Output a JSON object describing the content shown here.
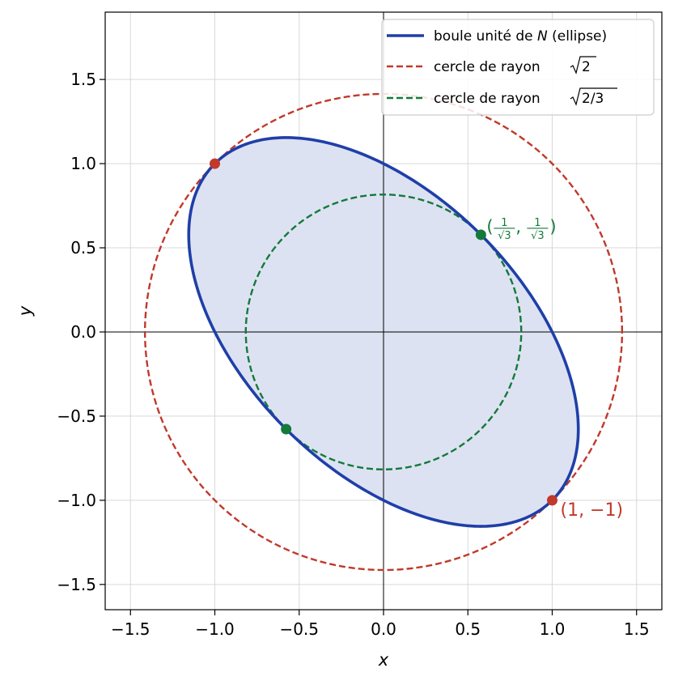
{
  "chart_data": {
    "type": "line",
    "xlabel": "x",
    "ylabel": "y",
    "xlim": [
      -1.65,
      1.65
    ],
    "ylim": [
      -1.65,
      1.9
    ],
    "xticks": [
      -1.5,
      -1.0,
      -0.5,
      0.0,
      0.5,
      1.0,
      1.5
    ],
    "yticks": [
      -1.5,
      -1.0,
      -0.5,
      0.0,
      0.5,
      1.0,
      1.5
    ],
    "xtick_labels": [
      "−1.5",
      "−1.0",
      "−0.5",
      "0.0",
      "0.5",
      "1.0",
      "1.5"
    ],
    "ytick_labels": [
      "−1.5",
      "−1.0",
      "−0.5",
      "0.0",
      "0.5",
      "1.0",
      "1.5"
    ],
    "grid": true,
    "legend_position": "top-right",
    "series": [
      {
        "name": "boule unité de N (ellipse)",
        "kind": "ellipse",
        "equation": "x^2 + x*y + y^2 = 1",
        "color": "#1f3fa8",
        "fill": "#dde2f2",
        "style": "solid"
      },
      {
        "name": "cercle de rayon √2",
        "kind": "circle",
        "radius": 1.41421,
        "color": "#c0392b",
        "style": "dashed"
      },
      {
        "name": "cercle de rayon √2/3",
        "kind": "circle",
        "radius": 0.8165,
        "color": "#137a3a",
        "style": "dashed"
      }
    ],
    "points": [
      {
        "x": -1.0,
        "y": 1.0,
        "color": "#c0392b"
      },
      {
        "x": 1.0,
        "y": -1.0,
        "color": "#c0392b"
      },
      {
        "x": 0.57735,
        "y": 0.57735,
        "color": "#137a3a"
      },
      {
        "x": -0.57735,
        "y": -0.57735,
        "color": "#137a3a"
      }
    ],
    "annotations": [
      {
        "text": "(1, −1)",
        "x": 1.0,
        "y": -1.0,
        "color": "#c0392b"
      },
      {
        "text_parts": [
          "(",
          "1",
          "√3",
          ", ",
          "1",
          "√3",
          ")"
        ],
        "x": 0.57735,
        "y": 0.57735,
        "color": "#137a3a"
      }
    ],
    "legend": {
      "entries": [
        {
          "label_parts": [
            "boule unité de ",
            "N",
            " (ellipse)"
          ]
        },
        {
          "label_parts": [
            "cercle de rayon ",
            "2"
          ]
        },
        {
          "label_parts": [
            "cercle de rayon ",
            "2/3"
          ]
        }
      ]
    }
  }
}
